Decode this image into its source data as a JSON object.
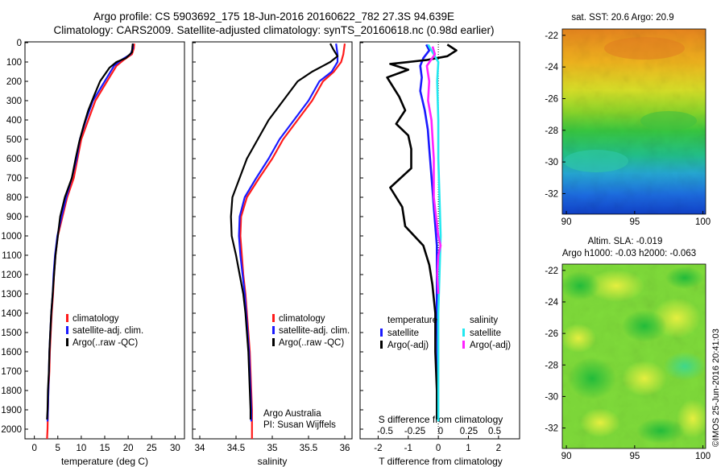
{
  "header": {
    "title_line1": "Argo profile: CS 5903692_175 18-Jun-2016 20160622_782 27.3S 94.639E",
    "title_line2": "Climatology: CARS2009. Satellite-adjusted climatology: synTS_20160618.nc (0.98d earlier)"
  },
  "stamp": "©IMOS 25-Jun-2016 20:41:03",
  "colors": {
    "climatology": "#ff1a1a",
    "satellite": "#1a1aff",
    "argo": "#000000",
    "sal_satellite": "#22e8f0",
    "sal_argo": "#ff22ff"
  },
  "chart_data": [
    {
      "id": "temperature",
      "type": "line",
      "xlabel": "temperature (deg C)",
      "ylabel": "",
      "xlim": [
        -2,
        32
      ],
      "ylim": [
        0,
        2050
      ],
      "xticks": [
        0,
        5,
        10,
        15,
        20,
        25,
        30
      ],
      "yticks": [
        0,
        100,
        200,
        300,
        400,
        500,
        600,
        700,
        800,
        900,
        1000,
        1100,
        1200,
        1300,
        1400,
        1500,
        1600,
        1700,
        1800,
        1900,
        2000
      ],
      "legend": [
        "climatology",
        "satellite-adj. clim.",
        "Argo(..raw -QC)"
      ],
      "series": [
        {
          "name": "climatology",
          "color": "#ff1a1a",
          "points": [
            [
              21.3,
              5
            ],
            [
              21.2,
              30
            ],
            [
              20.8,
              60
            ],
            [
              19,
              90
            ],
            [
              17.5,
              120
            ],
            [
              16,
              180
            ],
            [
              14,
              260
            ],
            [
              13,
              300
            ],
            [
              11.5,
              400
            ],
            [
              10,
              500
            ],
            [
              9.2,
              600
            ],
            [
              8.4,
              700
            ],
            [
              7,
              800
            ],
            [
              6,
              900
            ],
            [
              5,
              1000
            ],
            [
              4.5,
              1100
            ],
            [
              4.2,
              1200
            ],
            [
              4,
              1300
            ],
            [
              3.7,
              1400
            ],
            [
              3.5,
              1500
            ],
            [
              3.3,
              1600
            ],
            [
              3.2,
              1700
            ],
            [
              3,
              1800
            ],
            [
              2.9,
              1900
            ],
            [
              2.8,
              2000
            ],
            [
              2.7,
              2050
            ]
          ]
        },
        {
          "name": "satellite-adj. clim.",
          "color": "#1a1aff",
          "points": [
            [
              21,
              5
            ],
            [
              21,
              30
            ],
            [
              20.5,
              60
            ],
            [
              18.5,
              90
            ],
            [
              17,
              120
            ],
            [
              15.5,
              180
            ],
            [
              13.5,
              260
            ],
            [
              12.5,
              300
            ],
            [
              11,
              400
            ],
            [
              9.7,
              500
            ],
            [
              9,
              600
            ],
            [
              8,
              700
            ],
            [
              6.8,
              800
            ],
            [
              5.8,
              900
            ],
            [
              4.9,
              1000
            ],
            [
              4.4,
              1100
            ],
            [
              4.1,
              1200
            ],
            [
              3.9,
              1300
            ],
            [
              3.6,
              1400
            ],
            [
              3.4,
              1500
            ],
            [
              3.2,
              1600
            ],
            [
              3.1,
              1700
            ],
            [
              3,
              1800
            ],
            [
              2.9,
              1900
            ],
            [
              2.8,
              1960
            ]
          ]
        },
        {
          "name": "Argo(..raw -QC)",
          "color": "#000000",
          "points": [
            [
              21,
              5
            ],
            [
              20.9,
              20
            ],
            [
              20.8,
              50
            ],
            [
              19.5,
              80
            ],
            [
              17.5,
              100
            ],
            [
              16,
              130
            ],
            [
              14,
              200
            ],
            [
              12.8,
              270
            ],
            [
              11.5,
              350
            ],
            [
              10.5,
              430
            ],
            [
              9.5,
              520
            ],
            [
              8.8,
              600
            ],
            [
              8,
              700
            ],
            [
              6.5,
              800
            ],
            [
              5.5,
              900
            ],
            [
              5,
              1000
            ],
            [
              4.5,
              1100
            ],
            [
              4.2,
              1200
            ],
            [
              3.9,
              1300
            ],
            [
              3.6,
              1400
            ],
            [
              3.4,
              1500
            ],
            [
              3.2,
              1600
            ],
            [
              3.1,
              1700
            ],
            [
              2.9,
              1800
            ],
            [
              2.8,
              1900
            ],
            [
              2.7,
              1950
            ]
          ]
        }
      ]
    },
    {
      "id": "salinity",
      "type": "line",
      "xlabel": "salinity",
      "ylabel": "",
      "xlim": [
        33.9,
        36.1
      ],
      "ylim": [
        0,
        2050
      ],
      "xticks": [
        34,
        34.5,
        35,
        35.5,
        36
      ],
      "legend": [
        "climatology",
        "satellite-adj. clim.",
        "Argo(..raw -QC)"
      ],
      "annotation": [
        "Argo Australia",
        "PI: Susan Wijffels"
      ],
      "series": [
        {
          "name": "climatology",
          "color": "#ff1a1a",
          "points": [
            [
              36,
              5
            ],
            [
              35.98,
              60
            ],
            [
              35.95,
              100
            ],
            [
              35.85,
              150
            ],
            [
              35.7,
              200
            ],
            [
              35.55,
              300
            ],
            [
              35.35,
              400
            ],
            [
              35.15,
              500
            ],
            [
              35,
              600
            ],
            [
              34.82,
              700
            ],
            [
              34.65,
              800
            ],
            [
              34.57,
              900
            ],
            [
              34.56,
              1000
            ],
            [
              34.58,
              1100
            ],
            [
              34.6,
              1200
            ],
            [
              34.63,
              1300
            ],
            [
              34.65,
              1400
            ],
            [
              34.67,
              1500
            ],
            [
              34.69,
              1600
            ],
            [
              34.7,
              1700
            ],
            [
              34.71,
              1800
            ],
            [
              34.72,
              1900
            ],
            [
              34.72,
              2000
            ],
            [
              34.72,
              2050
            ]
          ]
        },
        {
          "name": "satellite-adj. clim.",
          "color": "#1a1aff",
          "points": [
            [
              35.88,
              5
            ],
            [
              35.9,
              60
            ],
            [
              35.9,
              100
            ],
            [
              35.82,
              150
            ],
            [
              35.65,
              200
            ],
            [
              35.5,
              300
            ],
            [
              35.3,
              400
            ],
            [
              35.1,
              500
            ],
            [
              34.95,
              600
            ],
            [
              34.78,
              700
            ],
            [
              34.62,
              800
            ],
            [
              34.55,
              900
            ],
            [
              34.54,
              1000
            ],
            [
              34.56,
              1100
            ],
            [
              34.59,
              1200
            ],
            [
              34.62,
              1300
            ],
            [
              34.64,
              1400
            ],
            [
              34.66,
              1500
            ],
            [
              34.68,
              1600
            ],
            [
              34.69,
              1700
            ],
            [
              34.7,
              1800
            ],
            [
              34.71,
              1900
            ],
            [
              34.71,
              1960
            ]
          ]
        },
        {
          "name": "Argo(..raw -QC)",
          "color": "#000000",
          "points": [
            [
              35.8,
              5
            ],
            [
              35.85,
              40
            ],
            [
              35.9,
              70
            ],
            [
              35.8,
              100
            ],
            [
              35.7,
              120
            ],
            [
              35.55,
              150
            ],
            [
              35.35,
              200
            ],
            [
              35.15,
              300
            ],
            [
              34.95,
              400
            ],
            [
              34.8,
              500
            ],
            [
              34.65,
              600
            ],
            [
              34.55,
              700
            ],
            [
              34.45,
              800
            ],
            [
              34.43,
              900
            ],
            [
              34.44,
              1000
            ],
            [
              34.5,
              1100
            ],
            [
              34.55,
              1200
            ],
            [
              34.6,
              1300
            ],
            [
              34.63,
              1400
            ],
            [
              34.65,
              1500
            ],
            [
              34.67,
              1600
            ],
            [
              34.68,
              1700
            ],
            [
              34.69,
              1800
            ],
            [
              34.7,
              1900
            ],
            [
              34.7,
              1950
            ]
          ]
        }
      ]
    },
    {
      "id": "difference",
      "type": "line",
      "xlabel": "T difference from climatology",
      "xlabel_top": "S difference from climatology",
      "xlim": [
        -2.6,
        2.7
      ],
      "ylim": [
        0,
        2050
      ],
      "xticks_T": [
        -2,
        -1,
        0,
        1,
        2
      ],
      "xticks_S": [
        "-0.5",
        "-0.25",
        "0",
        "0.25",
        "0.5"
      ],
      "legend_groups": [
        {
          "title": "temperature",
          "items": [
            "satellite",
            "Argo(-adj)"
          ]
        },
        {
          "title": "salinity",
          "items": [
            "satellite",
            "Argo(-adj)"
          ]
        }
      ],
      "series": [
        {
          "name": "temperature satellite",
          "color": "#1a1aff",
          "points": [
            [
              -0.4,
              10
            ],
            [
              -0.3,
              40
            ],
            [
              -0.5,
              80
            ],
            [
              -0.6,
              120
            ],
            [
              -0.55,
              180
            ],
            [
              -0.6,
              250
            ],
            [
              -0.45,
              350
            ],
            [
              -0.35,
              450
            ],
            [
              -0.3,
              550
            ],
            [
              -0.25,
              650
            ],
            [
              -0.2,
              750
            ],
            [
              -0.15,
              850
            ],
            [
              -0.1,
              950
            ],
            [
              -0.05,
              1050
            ],
            [
              -0.05,
              1150
            ],
            [
              -0.05,
              1250
            ],
            [
              -0.05,
              1350
            ],
            [
              -0.04,
              1450
            ],
            [
              -0.03,
              1550
            ],
            [
              -0.03,
              1650
            ],
            [
              -0.02,
              1750
            ],
            [
              -0.02,
              1850
            ],
            [
              -0.02,
              1950
            ]
          ]
        },
        {
          "name": "temperature Argo(-adj)",
          "color": "#000000",
          "points": [
            [
              0.3,
              10
            ],
            [
              0.6,
              40
            ],
            [
              0.3,
              70
            ],
            [
              -0.4,
              90
            ],
            [
              -1.6,
              110
            ],
            [
              -1,
              140
            ],
            [
              -1.7,
              180
            ],
            [
              -1.5,
              230
            ],
            [
              -1.3,
              280
            ],
            [
              -1.1,
              350
            ],
            [
              -1.4,
              420
            ],
            [
              -1.0,
              480
            ],
            [
              -0.9,
              550
            ],
            [
              -0.9,
              650
            ],
            [
              -1.6,
              750
            ],
            [
              -1.2,
              850
            ],
            [
              -1.1,
              950
            ],
            [
              -0.5,
              1050
            ],
            [
              -0.3,
              1150
            ],
            [
              -0.2,
              1250
            ],
            [
              -0.1,
              1400
            ],
            [
              -0.1,
              1600
            ],
            [
              -0.05,
              1800
            ],
            [
              -0.05,
              1950
            ]
          ]
        },
        {
          "name": "salinity satellite",
          "color": "#22e8f0",
          "points": [
            [
              -0.09,
              10
            ],
            [
              -0.05,
              50
            ],
            [
              0.0,
              100
            ],
            [
              -0.01,
              200
            ],
            [
              0.0,
              400
            ],
            [
              0.0,
              600
            ],
            [
              0.01,
              800
            ],
            [
              0.02,
              1000
            ],
            [
              0.01,
              1200
            ],
            [
              0.0,
              1400
            ],
            [
              0.0,
              1600
            ],
            [
              0.0,
              1800
            ],
            [
              0.0,
              1960
            ]
          ]
        },
        {
          "name": "salinity Argo(-adj)",
          "color": "#ff22ff",
          "points": [
            [
              -0.05,
              20
            ],
            [
              -0.03,
              60
            ],
            [
              -0.1,
              120
            ],
            [
              -0.08,
              200
            ],
            [
              -0.09,
              300
            ],
            [
              -0.06,
              400
            ],
            [
              -0.05,
              500
            ],
            [
              -0.04,
              600
            ],
            [
              -0.04,
              700
            ],
            [
              -0.04,
              800
            ],
            [
              -0.02,
              900
            ],
            [
              0.0,
              1000
            ],
            [
              0.02,
              1050
            ],
            [
              0.0,
              1100
            ],
            [
              -0.01,
              1200
            ],
            [
              0.0,
              1300
            ]
          ]
        }
      ]
    },
    {
      "id": "sst_map",
      "type": "heatmap",
      "title": "sat. SST: 20.6  Argo: 20.9",
      "xticks": [
        90,
        95,
        100
      ],
      "yticks": [
        -22,
        -24,
        -26,
        -28,
        -30,
        -32
      ],
      "xlim": [
        89.7,
        100.2
      ],
      "ylim": [
        -33.3,
        -21.6
      ],
      "description_values": {
        "north": "warm (orange)",
        "south": "cool (blue)"
      }
    },
    {
      "id": "sla_map",
      "type": "heatmap",
      "title_line1": "Altim. SLA: -0.019",
      "title_line2": "Argo h1000: -0.03 h2000: -0.063",
      "xticks": [
        90,
        95,
        100
      ],
      "yticks": [
        -22,
        -24,
        -26,
        -28,
        -30,
        -32
      ],
      "xlim": [
        89.7,
        100.2
      ],
      "ylim": [
        -33.3,
        -21.6
      ]
    }
  ]
}
